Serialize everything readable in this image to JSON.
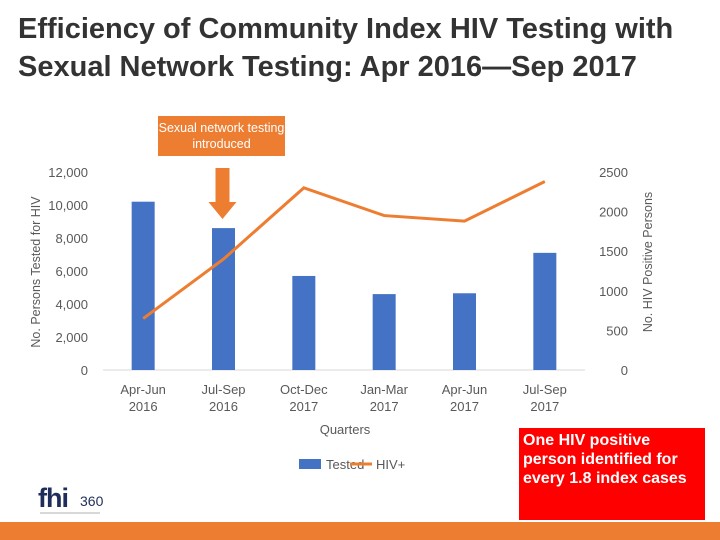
{
  "title_line1": "Efficiency of Community Index HIV Testing with",
  "title_line2": "Sexual Network Testing: Apr 2016—Sep 2017",
  "callout_top": "Sexual network testing introduced",
  "callout_bottom": "One HIV positive person identified for every 1.8 index cases",
  "logo": {
    "main": "fhi",
    "sub": "360",
    "icon": "fhi360-logo-icon"
  },
  "colors": {
    "tested": "#4472c4",
    "hiv": "#ed7d31",
    "accent": "#ff0000",
    "text": "#595959"
  },
  "chart_data": {
    "type": "bar",
    "xlabel": "Quarters",
    "ylabel": "No. Persons Tested for HIV",
    "y2label": "No. HIV Positive Persons",
    "categories": [
      "Apr-Jun 2016",
      "Jul-Sep 2016",
      "Oct-Dec 2017",
      "Jan-Mar 2017",
      "Apr-Jun 2017",
      "Jul-Sep 2017"
    ],
    "category_lines": [
      [
        "Apr-Jun",
        "2016"
      ],
      [
        "Jul-Sep",
        "2016"
      ],
      [
        "Oct-Dec",
        "2017"
      ],
      [
        "Jan-Mar",
        "2017"
      ],
      [
        "Apr-Jun",
        "2017"
      ],
      [
        "Jul-Sep",
        "2017"
      ]
    ],
    "ylim": [
      0,
      12000
    ],
    "yticks": [
      0,
      2000,
      4000,
      6000,
      8000,
      10000,
      12000
    ],
    "ytick_labels": [
      "0",
      "2,000",
      "4,000",
      "6,000",
      "8,000",
      "10,000",
      "12,000"
    ],
    "y2lim": [
      0,
      2500
    ],
    "y2ticks": [
      0,
      500,
      1000,
      1500,
      2000,
      2500
    ],
    "y2tick_labels": [
      "0",
      "500",
      "1000",
      "1500",
      "2000",
      "2500"
    ],
    "series": [
      {
        "name": "Tested",
        "type": "bar",
        "axis": "left",
        "values": [
          10200,
          8600,
          5700,
          4600,
          4650,
          7100
        ]
      },
      {
        "name": "HIV+",
        "type": "line",
        "axis": "right",
        "values": [
          650,
          1400,
          2300,
          1950,
          1880,
          2380
        ]
      }
    ],
    "legend": [
      "Tested",
      "HIV+"
    ],
    "legend_position": "bottom",
    "annotation_arrow_category": 1
  }
}
